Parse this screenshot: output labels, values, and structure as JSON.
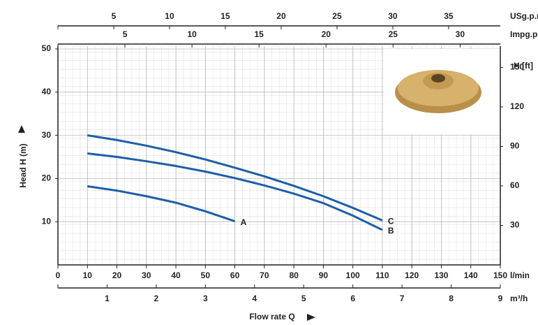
{
  "chart_data": {
    "type": "line",
    "x_label": "Flow rate Q",
    "y_label": "Head H (m)",
    "y2_label": "H [ft]",
    "x_unit": "l/min",
    "xlim": [
      0,
      150
    ],
    "xticks": [
      0,
      10,
      20,
      30,
      40,
      50,
      60,
      70,
      80,
      90,
      100,
      110,
      120,
      130,
      140,
      150
    ],
    "ylim": [
      0,
      50
    ],
    "yticks": [
      10,
      20,
      30,
      40,
      50
    ],
    "y2lim": [
      0,
      164.04
    ],
    "y2ticks": [
      30,
      60,
      90,
      120,
      150
    ],
    "grid": true,
    "extra_x_axes": [
      {
        "unit": "m³/h",
        "position": "bottom",
        "lim": [
          0,
          9
        ],
        "ticks": [
          1,
          2,
          3,
          4,
          5,
          6,
          7,
          8,
          9
        ]
      },
      {
        "unit": "Impg.p.m",
        "position": "top",
        "lim": [
          0,
          33.0
        ],
        "ticks": [
          5,
          10,
          15,
          20,
          25,
          30
        ]
      },
      {
        "unit": "USg.p.m",
        "position": "top",
        "lim": [
          0,
          39.63
        ],
        "ticks": [
          5,
          10,
          15,
          20,
          25,
          30,
          35
        ]
      }
    ],
    "series": [
      {
        "name": "A",
        "color": "#1d5ea8",
        "x": [
          10,
          20,
          30,
          40,
          50,
          60
        ],
        "values": [
          18.2,
          17.2,
          15.9,
          14.4,
          12.4,
          10.1
        ]
      },
      {
        "name": "B",
        "color": "#1d5ea8",
        "x": [
          10,
          20,
          30,
          40,
          50,
          60,
          70,
          80,
          90,
          100,
          110
        ],
        "values": [
          25.8,
          25,
          24,
          22.9,
          21.6,
          20.1,
          18.4,
          16.5,
          14.3,
          11.4,
          8.1
        ]
      },
      {
        "name": "C",
        "color": "#1d5ea8",
        "x": [
          10,
          20,
          30,
          40,
          50,
          60,
          70,
          80,
          90,
          100,
          110
        ],
        "values": [
          30,
          28.9,
          27.6,
          26.1,
          24.4,
          22.5,
          20.5,
          18.3,
          15.9,
          13.2,
          10.3
        ]
      }
    ]
  }
}
